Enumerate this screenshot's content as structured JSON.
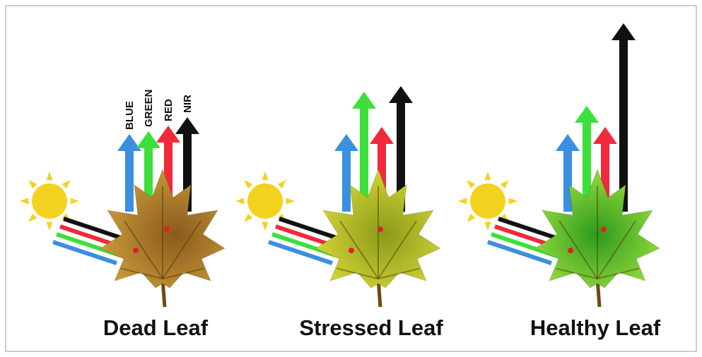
{
  "bands": [
    "BLUE",
    "GREEN",
    "RED",
    "NIR"
  ],
  "panels": [
    {
      "label": "Dead Leaf"
    },
    {
      "label": "Stressed Leaf"
    },
    {
      "label": "Healthy Leaf"
    }
  ]
}
